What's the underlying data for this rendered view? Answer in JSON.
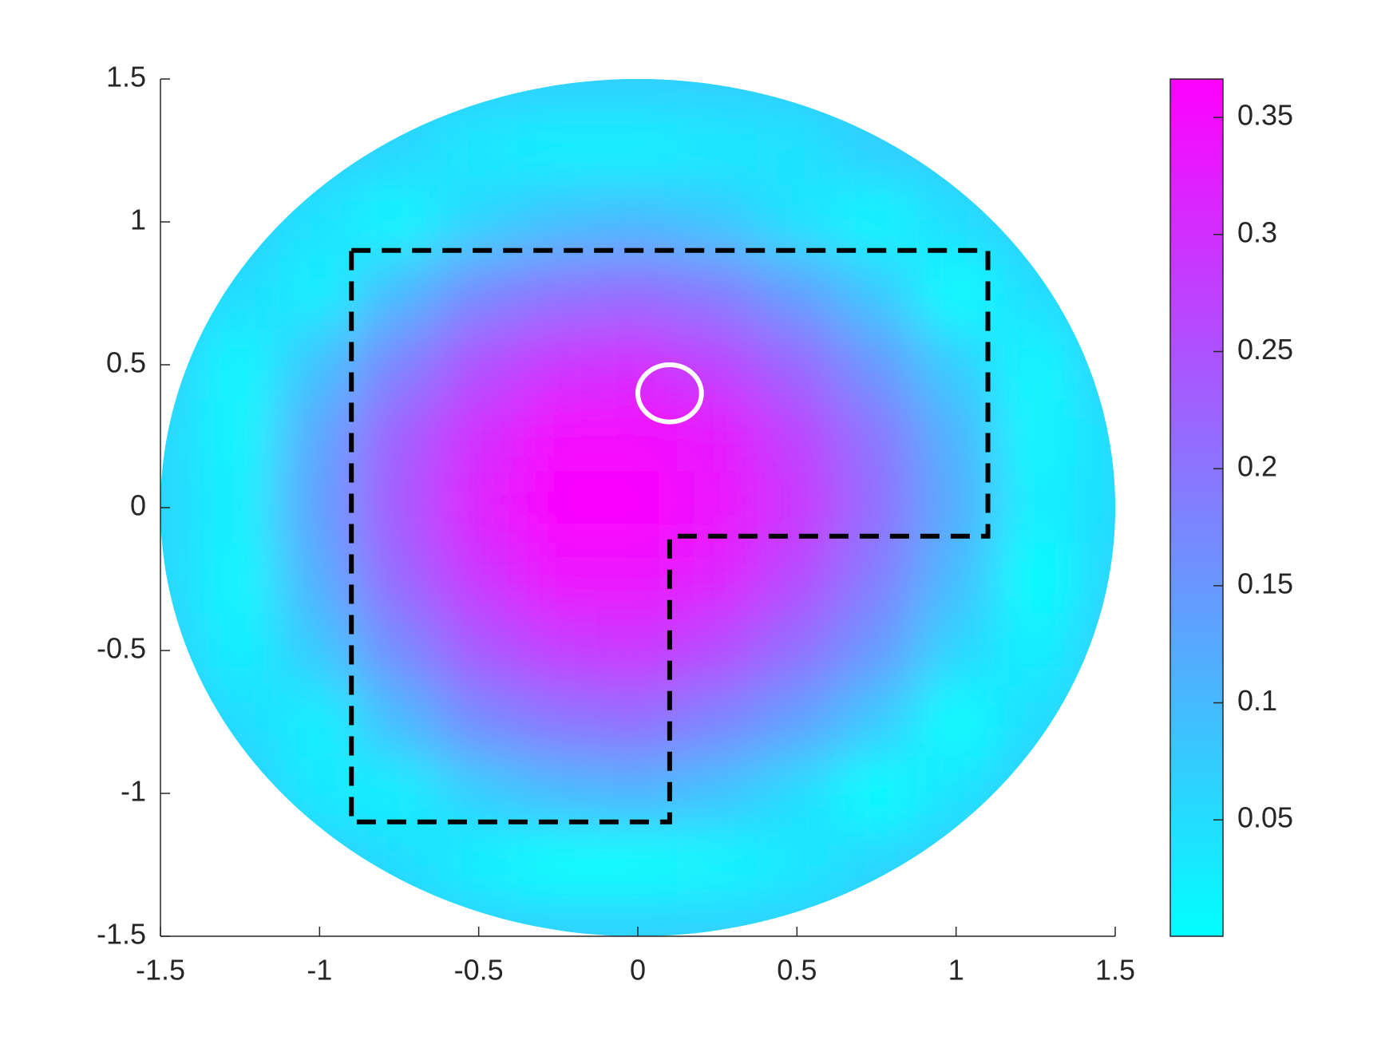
{
  "chart_data": {
    "type": "heatmap",
    "colormap": "cool",
    "x": [
      -1.5,
      -1.25,
      -1.0,
      -0.75,
      -0.5,
      -0.25,
      0,
      0.25,
      0.5,
      0.75,
      1.0,
      1.25,
      1.5
    ],
    "y": [
      1.5,
      1.25,
      1.0,
      0.75,
      0.5,
      0.25,
      0,
      -0.25,
      -0.5,
      -0.75,
      -1.0,
      -1.25,
      -1.5
    ],
    "z": [
      [
        null,
        null,
        null,
        0.07,
        0.07,
        0.07,
        0.07,
        0.07,
        0.07,
        0.07,
        null,
        null,
        null
      ],
      [
        null,
        null,
        0.07,
        0.06,
        0.03,
        0.02,
        0.02,
        0.03,
        0.04,
        0.07,
        0.07,
        null,
        null
      ],
      [
        null,
        0.07,
        0.04,
        0.01,
        0.06,
        0.09,
        0.1,
        0.08,
        0.04,
        0.01,
        0.05,
        0.07,
        null
      ],
      [
        0.07,
        0.05,
        0.02,
        0.1,
        0.17,
        0.2,
        0.21,
        0.19,
        0.14,
        0.08,
        0,
        0.05,
        0.07
      ],
      [
        0.07,
        0.01,
        0.09,
        0.18,
        0.25,
        0.29,
        0.3,
        0.27,
        0.22,
        0.15,
        0.07,
        0.01,
        0.07
      ],
      [
        0.06,
        0.01,
        0.13,
        0.23,
        0.3,
        0.35,
        0.35,
        0.33,
        0.27,
        0.2,
        0.11,
        0.01,
        0.05
      ],
      [
        0.06,
        0.02,
        0.14,
        0.24,
        0.32,
        0.36,
        0.36,
        0.34,
        0.29,
        0.21,
        0.12,
        0.02,
        0.05
      ],
      [
        0.06,
        0.01,
        0.12,
        0.22,
        0.29,
        0.34,
        0.34,
        0.32,
        0.26,
        0.19,
        0.1,
        0,
        0.06
      ],
      [
        0.07,
        0.02,
        0.08,
        0.17,
        0.24,
        0.28,
        0.29,
        0.26,
        0.21,
        0.15,
        0.06,
        0.02,
        0.07
      ],
      [
        0.07,
        0.05,
        0.02,
        0.1,
        0.17,
        0.2,
        0.21,
        0.18,
        0.14,
        0.08,
        0,
        0.05,
        0.07
      ],
      [
        null,
        0.07,
        0.03,
        0.02,
        0.07,
        0.1,
        0.11,
        0.09,
        0.05,
        0,
        0.04,
        0.07,
        null
      ],
      [
        null,
        null,
        0.07,
        0.05,
        0.02,
        0,
        0,
        0.01,
        0.03,
        0.06,
        0.07,
        null,
        null
      ],
      [
        null,
        null,
        null,
        0.07,
        0.07,
        0.07,
        0.07,
        0.07,
        0.07,
        0.07,
        null,
        null,
        null
      ]
    ],
    "xlim": [
      -1.5,
      1.5
    ],
    "ylim": [
      -1.5,
      1.5
    ],
    "xticks": [
      -1.5,
      -1,
      -0.5,
      0,
      0.5,
      1,
      1.5
    ],
    "yticks": [
      -1.5,
      -1,
      -0.5,
      0,
      0.5,
      1,
      1.5
    ],
    "clim": [
      0.0003,
      0.3664
    ],
    "cticks": [
      0.05,
      0.1,
      0.15,
      0.2,
      0.25,
      0.3,
      0.35
    ],
    "polygon": {
      "x": [
        -0.9,
        1.1,
        1.1,
        0.1,
        0.1,
        -0.9
      ],
      "y": [
        0.9,
        0.9,
        -0.1,
        -0.1,
        -1.1,
        -1.1
      ],
      "color": "#000000"
    },
    "marker": {
      "x": 0.1,
      "y": 0.4,
      "r": 0.1,
      "color": "#ffffff"
    }
  }
}
